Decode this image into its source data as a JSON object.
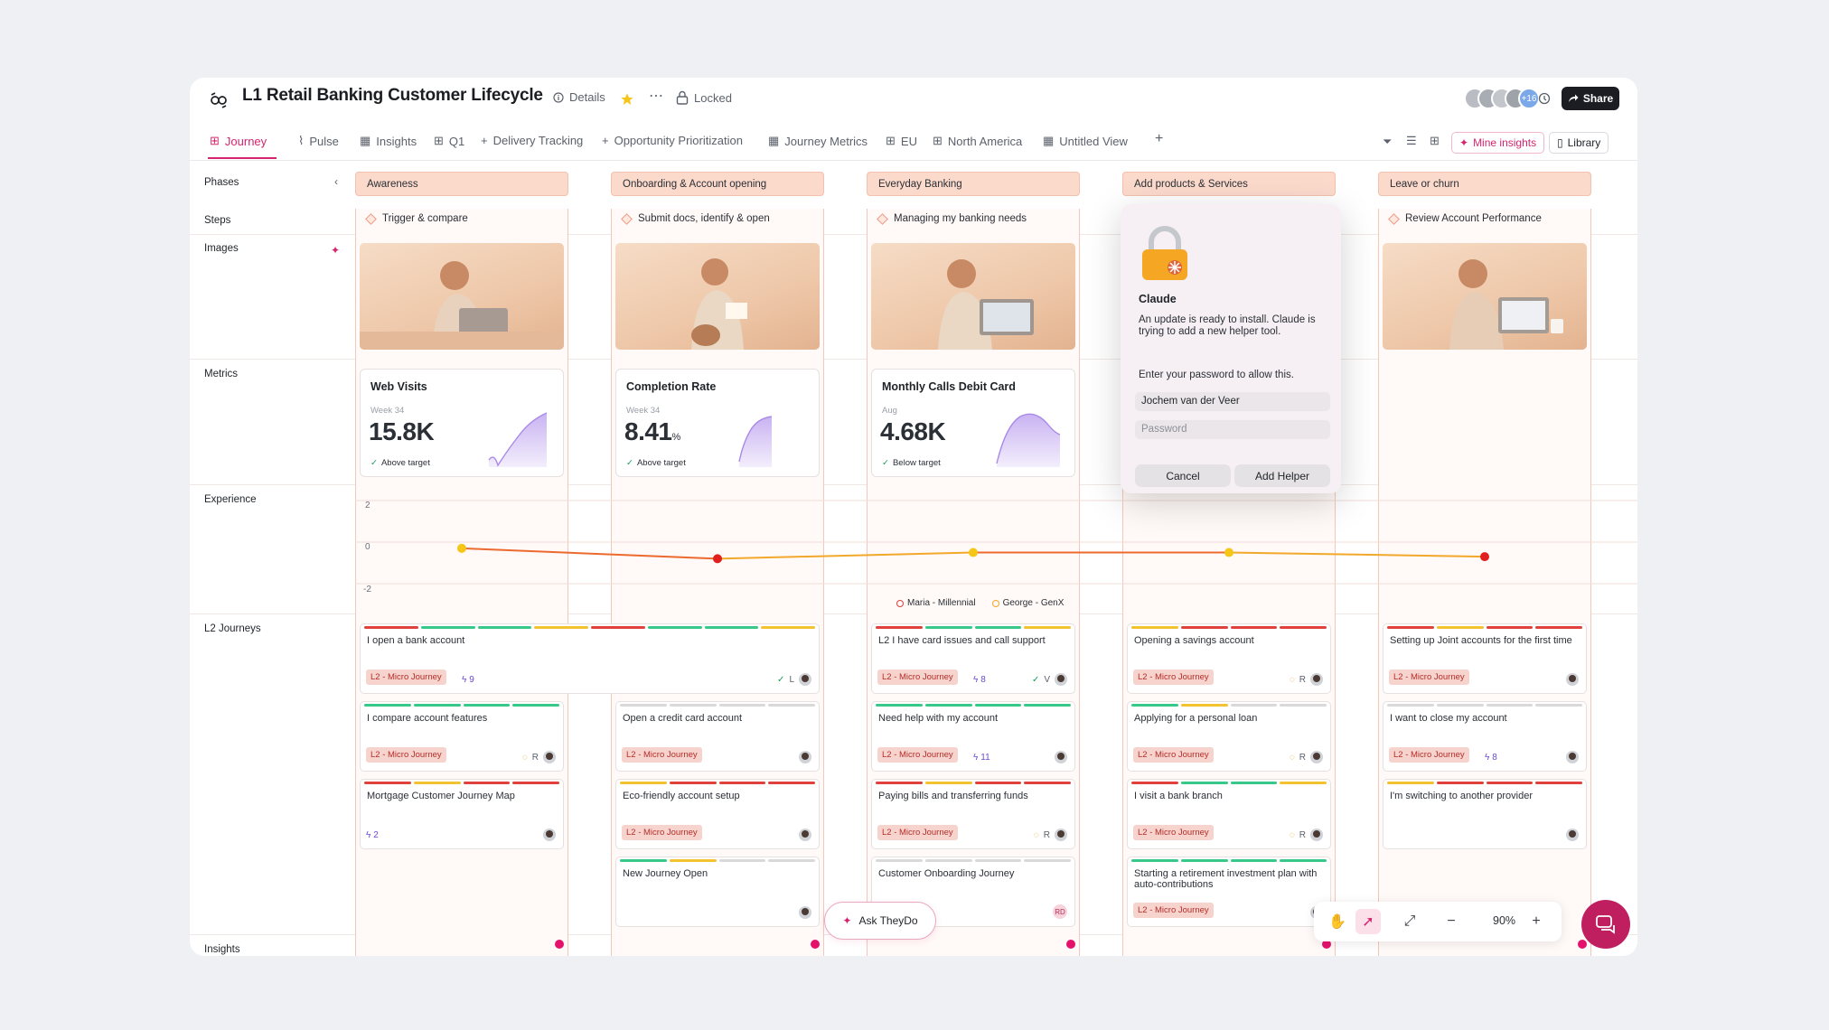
{
  "header": {
    "title": "L1 Retail Banking Customer Lifecycle",
    "details_label": "Details",
    "locked_label": "Locked",
    "avatars_more": "+16",
    "share_label": "Share"
  },
  "tabs": [
    {
      "label": "Journey",
      "icon": "map-icon",
      "active": true
    },
    {
      "label": "Pulse",
      "icon": "pulse-icon"
    },
    {
      "label": "Insights",
      "icon": "table-icon"
    },
    {
      "label": "Q1",
      "icon": "map-icon"
    },
    {
      "label": "Delivery Tracking",
      "icon": "plus-icon"
    },
    {
      "label": "Opportunity Prioritization",
      "icon": "plus-icon"
    },
    {
      "label": "Journey Metrics",
      "icon": "table-icon"
    },
    {
      "label": "EU",
      "icon": "map-icon"
    },
    {
      "label": "North America",
      "icon": "map-icon"
    },
    {
      "label": "Untitled View",
      "icon": "table-icon"
    }
  ],
  "toolbar_right": {
    "mine_insights": "Mine insights",
    "library": "Library"
  },
  "row_labels": {
    "phases": "Phases",
    "steps": "Steps",
    "images": "Images",
    "metrics": "Metrics",
    "experience": "Experience",
    "l2_journeys": "L2 Journeys",
    "insights": "Insights"
  },
  "phases": [
    "Awareness",
    "Onboarding & Account opening",
    "Everyday Banking",
    "Add products & Services",
    "Leave or churn"
  ],
  "steps": [
    "Trigger & compare",
    "Submit docs, identify & open",
    "Managing my banking needs",
    "",
    "Review Account Performance"
  ],
  "metrics": [
    {
      "title": "Web Visits",
      "period": "Week 34",
      "value": "15.8K",
      "unit": "",
      "status": "Above target",
      "good": true
    },
    {
      "title": "Completion Rate",
      "period": "Week 34",
      "value": "8.41",
      "unit": "%",
      "status": "Above target",
      "good": true
    },
    {
      "title": "Monthly Calls Debit Card",
      "period": "Aug",
      "value": "4.68K",
      "unit": "",
      "status": "Below target",
      "good": true
    }
  ],
  "experience": {
    "axis": [
      "2",
      "0",
      "-2"
    ],
    "legend": [
      "Maria - Millennial",
      "George - GenX"
    ],
    "scores": [
      -0.3,
      -0.8,
      -0.5,
      -0.5,
      -0.7
    ]
  },
  "journeys": {
    "tag": "L2 - Micro Journey",
    "cards": [
      {
        "col": 0,
        "row": 0,
        "title": "I open a bank account",
        "tag": true,
        "count": "9",
        "wide": true,
        "meta": "L"
      },
      {
        "col": 0,
        "row": 1,
        "title": "I compare account features",
        "tag": true,
        "meta": "R"
      },
      {
        "col": 0,
        "row": 2,
        "title": "Mortgage Customer Journey Map",
        "tag": false,
        "count": "2"
      },
      {
        "col": 1,
        "row": 1,
        "title": "Open a credit card account",
        "tag": true
      },
      {
        "col": 1,
        "row": 2,
        "title": "Eco-friendly account setup",
        "tag": true
      },
      {
        "col": 1,
        "row": 3,
        "title": "New Journey Open",
        "tag": false
      },
      {
        "col": 2,
        "row": 0,
        "title": "L2 I have card issues and call support",
        "tag": true,
        "count": "8",
        "meta": "V"
      },
      {
        "col": 2,
        "row": 1,
        "title": "Need help with my account",
        "tag": true,
        "count": "11"
      },
      {
        "col": 2,
        "row": 2,
        "title": "Paying bills and transferring funds",
        "tag": true,
        "meta": "R"
      },
      {
        "col": 2,
        "row": 3,
        "title": "Customer Onboarding Journey",
        "tag": false,
        "initials": "RD"
      },
      {
        "col": 3,
        "row": 0,
        "title": "Opening a savings account",
        "tag": true,
        "meta": "R"
      },
      {
        "col": 3,
        "row": 1,
        "title": "Applying for a personal loan",
        "tag": true,
        "meta": "R"
      },
      {
        "col": 3,
        "row": 2,
        "title": "I visit a bank branch",
        "tag": true,
        "meta": "R"
      },
      {
        "col": 3,
        "row": 3,
        "title": "Starting a retirement investment plan with auto-contributions",
        "tag": true
      },
      {
        "col": 4,
        "row": 0,
        "title": "Setting up Joint accounts for the first time",
        "tag": true
      },
      {
        "col": 4,
        "row": 1,
        "title": "I want to close my account",
        "tag": true,
        "count": "8"
      },
      {
        "col": 4,
        "row": 2,
        "title": "I'm switching to another provider",
        "tag": false
      }
    ]
  },
  "dialog": {
    "app_name": "Claude",
    "message": "An update is ready to install. Claude is trying to add a new helper tool.",
    "prompt": "Enter your password to allow this.",
    "username": "Jochem van der Veer",
    "password_placeholder": "Password",
    "cancel": "Cancel",
    "confirm": "Add Helper"
  },
  "ask_label": "Ask TheyDo",
  "zoom_level": "90%",
  "colors": {
    "accent": "#d6246e",
    "red": "#e0413c",
    "yellow": "#f2c230",
    "green": "#38c98a",
    "gray": "#d9d9d9"
  }
}
